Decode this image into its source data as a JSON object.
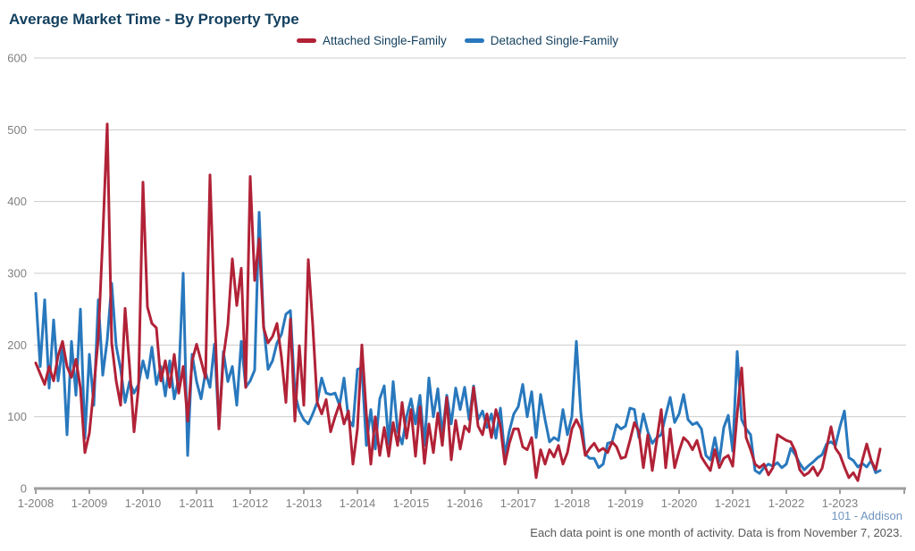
{
  "title": "Average Market Time - By Property Type",
  "footer": {
    "area_label": "101 - Addison",
    "note": "Each data point is one month of activity. Data is from November 7, 2023."
  },
  "axis_colors": {
    "grid": "#cccccc",
    "axis": "#9e9e9e",
    "tick_text": "#808080"
  },
  "chart_data": {
    "type": "line",
    "title": "Average Market Time - By Property Type",
    "x_unit": "month",
    "x_start": "2008-01",
    "x_end": "2023-10",
    "points_per_series": 190,
    "x_tick_labels": [
      "1-2008",
      "1-2009",
      "1-2010",
      "1-2011",
      "1-2012",
      "1-2013",
      "1-2014",
      "1-2015",
      "1-2016",
      "1-2017",
      "1-2018",
      "1-2019",
      "1-2020",
      "1-2021",
      "1-2022",
      "1-2023"
    ],
    "ylim": [
      0,
      600
    ],
    "y_ticks": [
      0,
      100,
      200,
      300,
      400,
      500,
      600
    ],
    "grid": true,
    "legend_position": "top",
    "series": [
      {
        "name": "Attached Single-Family",
        "color": "#b12237",
        "values": [
          175,
          160,
          145,
          170,
          150,
          185,
          205,
          170,
          155,
          180,
          140,
          50,
          77,
          140,
          210,
          350,
          508,
          203,
          150,
          116,
          251,
          170,
          79,
          141,
          427,
          253,
          230,
          224,
          150,
          178,
          141,
          187,
          133,
          170,
          94,
          178,
          201,
          178,
          154,
          437,
          250,
          83,
          183,
          228,
          320,
          255,
          307,
          141,
          435,
          290,
          348,
          224,
          203,
          212,
          230,
          183,
          120,
          236,
          94,
          199,
          116,
          319,
          228,
          120,
          104,
          124,
          79,
          100,
          118,
          90,
          108,
          34,
          83,
          200,
          104,
          34,
          100,
          46,
          85,
          45,
          92,
          60,
          120,
          70,
          110,
          45,
          114,
          35,
          90,
          50,
          105,
          60,
          127,
          40,
          95,
          55,
          87,
          79,
          141,
          87,
          75,
          104,
          71,
          110,
          87,
          34,
          63,
          83,
          83,
          58,
          54,
          71,
          15,
          54,
          34,
          54,
          44,
          60,
          34,
          50,
          83,
          96,
          83,
          46,
          56,
          63,
          52,
          56,
          50,
          65,
          58,
          42,
          44,
          67,
          92,
          79,
          29,
          75,
          25,
          67,
          110,
          29,
          83,
          29,
          52,
          71,
          65,
          54,
          67,
          44,
          34,
          25,
          54,
          29,
          42,
          46,
          31,
          104,
          168,
          71,
          54,
          34,
          29,
          34,
          19,
          29,
          75,
          71,
          67,
          65,
          52,
          26,
          18,
          22,
          30,
          18,
          28,
          56,
          86,
          56,
          47,
          30,
          15,
          22,
          11,
          39,
          62,
          39,
          26,
          55
        ]
      },
      {
        "name": "Detached Single-Family",
        "color": "#2878bd",
        "values": [
          272,
          170,
          263,
          140,
          235,
          150,
          200,
          75,
          205,
          130,
          250,
          70,
          187,
          116,
          263,
          158,
          207,
          286,
          199,
          166,
          120,
          149,
          133,
          145,
          178,
          154,
          197,
          145,
          170,
          129,
          178,
          125,
          154,
          300,
          46,
          187,
          149,
          125,
          162,
          141,
          201,
          85,
          191,
          149,
          170,
          116,
          205,
          141,
          150,
          165,
          385,
          228,
          166,
          178,
          203,
          215,
          243,
          248,
          133,
          108,
          96,
          90,
          104,
          120,
          154,
          133,
          131,
          133,
          116,
          154,
          96,
          87,
          166,
          168,
          60,
          110,
          55,
          125,
          143,
          62,
          149,
          80,
          62,
          100,
          125,
          90,
          130,
          60,
          154,
          100,
          139,
          75,
          130,
          90,
          140,
          110,
          141,
          96,
          143,
          96,
          108,
          85,
          104,
          70,
          112,
          46,
          80,
          104,
          114,
          145,
          100,
          135,
          71,
          131,
          96,
          65,
          71,
          67,
          110,
          75,
          100,
          205,
          106,
          48,
          42,
          42,
          29,
          34,
          63,
          65,
          89,
          83,
          87,
          112,
          110,
          71,
          104,
          79,
          63,
          71,
          75,
          102,
          127,
          92,
          104,
          131,
          96,
          89,
          92,
          83,
          46,
          40,
          71,
          38,
          85,
          102,
          52,
          191,
          96,
          83,
          75,
          25,
          21,
          29,
          34,
          31,
          36,
          29,
          34,
          56,
          47,
          35,
          26,
          32,
          37,
          43,
          47,
          62,
          65,
          60,
          86,
          108,
          43,
          39,
          30,
          35,
          30,
          39,
          22,
          25
        ]
      }
    ]
  }
}
